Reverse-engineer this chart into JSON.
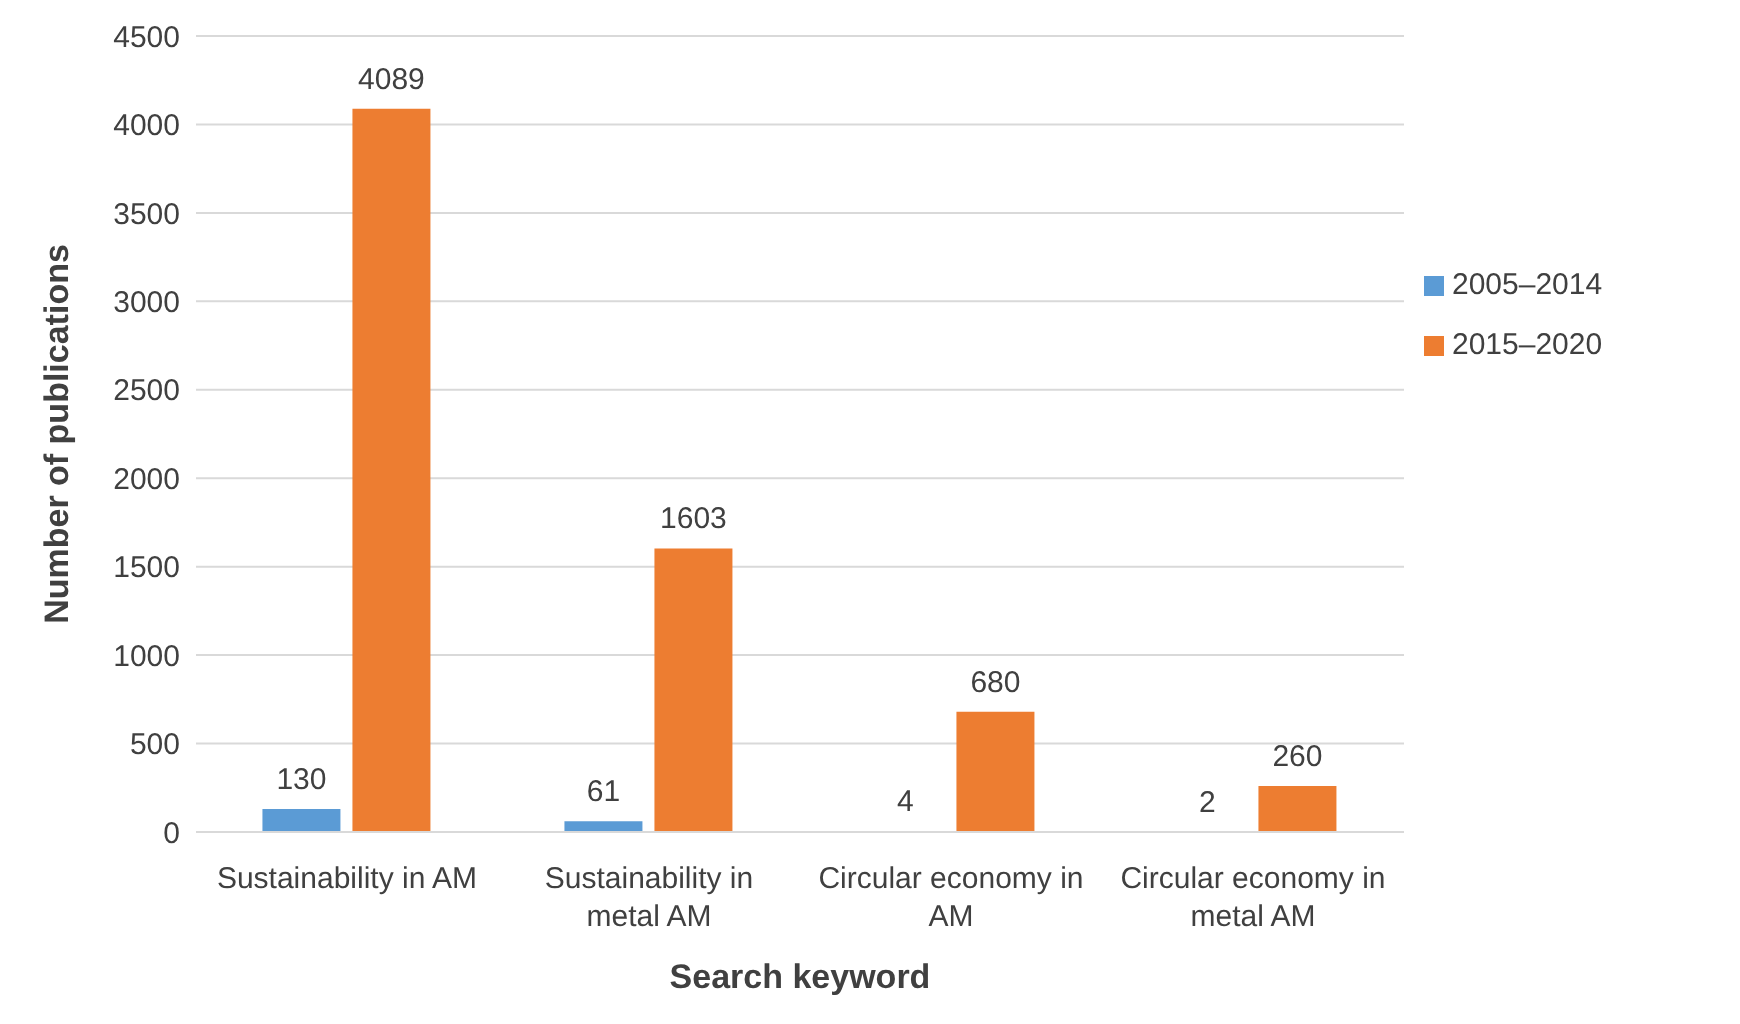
{
  "chart_data": {
    "type": "bar",
    "xlabel": "Search keyword",
    "ylabel": "Number of publications",
    "categories": [
      "Sustainability in AM",
      "Sustainability in metal AM",
      "Circular economy in AM",
      "Circular economy in metal AM"
    ],
    "series": [
      {
        "name": "2005–2014",
        "color": "#5b9bd5",
        "values": [
          130,
          61,
          4,
          2
        ]
      },
      {
        "name": "2015–2020",
        "color": "#ed7d31",
        "values": [
          4089,
          1603,
          680,
          260
        ]
      }
    ],
    "ylim": [
      0,
      4500
    ],
    "yticks": [
      0,
      500,
      1000,
      1500,
      2000,
      2500,
      3000,
      3500,
      4000,
      4500
    ],
    "grid": "y",
    "legend": "right",
    "data_labels": true
  }
}
